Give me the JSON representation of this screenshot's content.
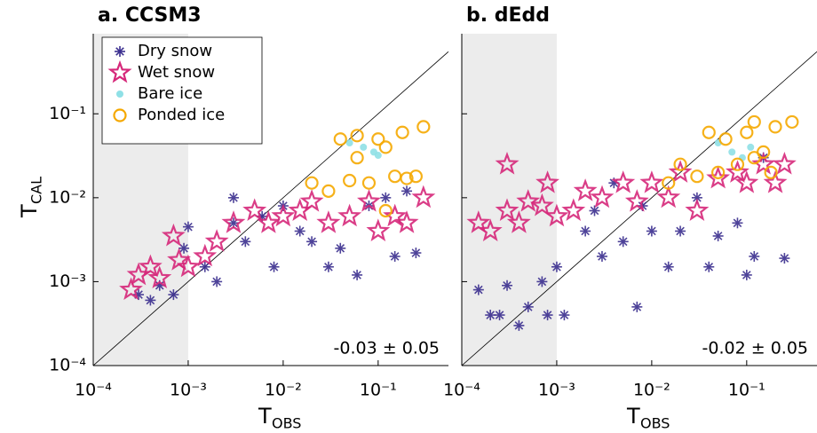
{
  "chart_data": [
    {
      "type": "scatter",
      "title": "a. CCSM3",
      "xlabel": "T",
      "xlabel_sub": "OBS",
      "ylabel": "T",
      "ylabel_sub": "CAL",
      "log_x": true,
      "log_y": true,
      "xlim": [
        0.0001,
        0.55
      ],
      "ylim": [
        0.0001,
        0.9
      ],
      "xticks": [
        {
          "value": 0.0001,
          "label": "10⁻⁴"
        },
        {
          "value": 0.001,
          "label": "10⁻³"
        },
        {
          "value": 0.01,
          "label": "10⁻²"
        },
        {
          "value": 0.1,
          "label": "10⁻¹"
        }
      ],
      "yticks": [
        {
          "value": 0.0001,
          "label": "10⁻⁴"
        },
        {
          "value": 0.001,
          "label": "10⁻³"
        },
        {
          "value": 0.01,
          "label": "10⁻²"
        },
        {
          "value": 0.1,
          "label": "10⁻¹"
        }
      ],
      "shade_xlim": [
        0.0001,
        0.001
      ],
      "one_to_one": true,
      "legend": "upper left",
      "annotation": "-0.03 ± 0.05",
      "series": [
        {
          "name": "Dry snow",
          "marker": "asterisk",
          "color": "#3b2f8f",
          "x": [
            0.0003,
            0.0004,
            0.0005,
            0.0007,
            0.0009,
            0.001,
            0.0015,
            0.002,
            0.003,
            0.003,
            0.004,
            0.006,
            0.008,
            0.01,
            0.015,
            0.02,
            0.03,
            0.04,
            0.06,
            0.08,
            0.12,
            0.15,
            0.2,
            0.25
          ],
          "y": [
            0.0007,
            0.0006,
            0.0009,
            0.0007,
            0.0025,
            0.0045,
            0.0015,
            0.001,
            0.01,
            0.005,
            0.003,
            0.006,
            0.0015,
            0.008,
            0.004,
            0.003,
            0.0015,
            0.0025,
            0.0012,
            0.008,
            0.01,
            0.002,
            0.012,
            0.0022
          ]
        },
        {
          "name": "Wet snow",
          "marker": "star",
          "color": "#d6287a",
          "x": [
            0.00025,
            0.0003,
            0.0004,
            0.0005,
            0.0007,
            0.0008,
            0.001,
            0.0015,
            0.002,
            0.003,
            0.005,
            0.007,
            0.01,
            0.015,
            0.02,
            0.03,
            0.05,
            0.08,
            0.1,
            0.15,
            0.2,
            0.3
          ],
          "y": [
            0.0008,
            0.0012,
            0.0015,
            0.0011,
            0.0035,
            0.0018,
            0.0015,
            0.002,
            0.003,
            0.005,
            0.007,
            0.005,
            0.006,
            0.007,
            0.009,
            0.005,
            0.006,
            0.009,
            0.004,
            0.006,
            0.005,
            0.01
          ]
        },
        {
          "name": "Bare ice",
          "marker": "dot",
          "color": "#8fe0e6",
          "x": [
            0.05,
            0.07,
            0.09,
            0.1
          ],
          "y": [
            0.045,
            0.04,
            0.035,
            0.032
          ]
        },
        {
          "name": "Ponded ice",
          "marker": "circle",
          "color": "#f5a800",
          "x": [
            0.02,
            0.03,
            0.04,
            0.05,
            0.06,
            0.08,
            0.1,
            0.12,
            0.15,
            0.18,
            0.2,
            0.3,
            0.06,
            0.12,
            0.25
          ],
          "y": [
            0.015,
            0.012,
            0.05,
            0.016,
            0.055,
            0.015,
            0.05,
            0.007,
            0.018,
            0.06,
            0.017,
            0.07,
            0.03,
            0.04,
            0.018
          ]
        }
      ]
    },
    {
      "type": "scatter",
      "title": "b. dEdd",
      "xlabel": "T",
      "xlabel_sub": "OBS",
      "log_x": true,
      "log_y": true,
      "xlim": [
        0.0001,
        0.55
      ],
      "ylim": [
        0.0001,
        0.9
      ],
      "xticks": [
        {
          "value": 0.0001,
          "label": "10⁻⁴"
        },
        {
          "value": 0.001,
          "label": "10⁻³"
        },
        {
          "value": 0.01,
          "label": "10⁻²"
        },
        {
          "value": 0.1,
          "label": "10⁻¹"
        }
      ],
      "yticks": [
        0.0001,
        0.001,
        0.01,
        0.1
      ],
      "shade_xlim": [
        0.0001,
        0.001
      ],
      "one_to_one": true,
      "annotation": "-0.02 ± 0.05",
      "series": [
        {
          "marker": "asterisk",
          "color": "#3b2f8f",
          "x": [
            0.00025,
            0.0003,
            0.0004,
            0.0005,
            0.0007,
            0.0008,
            0.001,
            0.0012,
            0.002,
            0.0025,
            0.003,
            0.004,
            0.005,
            0.007,
            0.008,
            0.01,
            0.015,
            0.02,
            0.03,
            0.04,
            0.05,
            0.08,
            0.1,
            0.12,
            0.15,
            0.25,
            0.00015,
            0.0002
          ],
          "y": [
            0.0004,
            0.0009,
            0.0003,
            0.0005,
            0.001,
            0.0004,
            0.0015,
            0.0004,
            0.004,
            0.007,
            0.002,
            0.015,
            0.003,
            0.0005,
            0.008,
            0.004,
            0.0015,
            0.004,
            0.01,
            0.0015,
            0.0035,
            0.005,
            0.0012,
            0.002,
            0.03,
            0.0019,
            0.0008,
            0.0004
          ]
        },
        {
          "marker": "star",
          "color": "#d6287a",
          "x": [
            0.00015,
            0.0002,
            0.0003,
            0.0004,
            0.0005,
            0.0007,
            0.0008,
            0.001,
            0.0015,
            0.002,
            0.003,
            0.005,
            0.007,
            0.01,
            0.015,
            0.02,
            0.03,
            0.05,
            0.08,
            0.1,
            0.15,
            0.2,
            0.25,
            0.0003
          ],
          "y": [
            0.005,
            0.004,
            0.007,
            0.005,
            0.009,
            0.008,
            0.015,
            0.006,
            0.007,
            0.012,
            0.01,
            0.015,
            0.009,
            0.015,
            0.01,
            0.02,
            0.007,
            0.017,
            0.02,
            0.015,
            0.025,
            0.015,
            0.025,
            0.025
          ]
        },
        {
          "marker": "dot",
          "color": "#8fe0e6",
          "x": [
            0.05,
            0.07,
            0.09,
            0.11
          ],
          "y": [
            0.045,
            0.035,
            0.03,
            0.04
          ]
        },
        {
          "marker": "circle",
          "color": "#f5a800",
          "x": [
            0.015,
            0.02,
            0.03,
            0.04,
            0.05,
            0.06,
            0.08,
            0.1,
            0.12,
            0.15,
            0.18,
            0.2,
            0.3,
            0.12
          ],
          "y": [
            0.015,
            0.025,
            0.018,
            0.06,
            0.02,
            0.05,
            0.025,
            0.06,
            0.08,
            0.035,
            0.02,
            0.07,
            0.08,
            0.03
          ]
        }
      ]
    }
  ]
}
